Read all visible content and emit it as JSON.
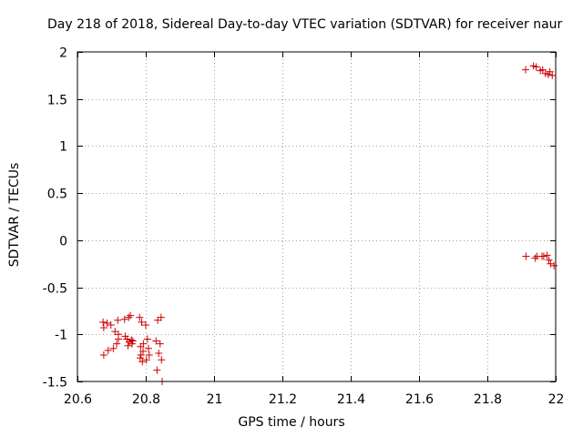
{
  "chart_data": {
    "type": "scatter",
    "title": "Day 218 of 2018, Sidereal Day-to-day VTEC variation (SDTVAR) for receiver naur",
    "xlabel": "GPS time / hours",
    "ylabel": "SDTVAR / TECUs",
    "xlim": [
      20.6,
      22
    ],
    "ylim": [
      -1.5,
      2
    ],
    "xticks": [
      20.6,
      20.8,
      21,
      21.2,
      21.4,
      21.6,
      21.8,
      22
    ],
    "xtick_labels": [
      "20.6",
      "20.8",
      "21",
      "21.2",
      "21.4",
      "21.6",
      "21.8",
      "22"
    ],
    "yticks": [
      -1.5,
      -1,
      -0.5,
      0,
      0.5,
      1,
      1.5,
      2
    ],
    "ytick_labels": [
      "-1.5",
      "-1",
      "-0.5",
      "0",
      "0.5",
      "1",
      "1.5",
      "2"
    ],
    "grid": true,
    "marker": "+",
    "color": "#cc0000",
    "series": [
      {
        "name": "SDTVAR",
        "x": [
          20.675,
          20.677,
          20.677,
          20.687,
          20.69,
          20.698,
          20.705,
          20.71,
          20.715,
          20.718,
          20.72,
          20.72,
          20.738,
          20.74,
          20.745,
          20.748,
          20.75,
          20.752,
          20.755,
          20.758,
          20.76,
          20.762,
          20.782,
          20.784,
          20.785,
          20.786,
          20.788,
          20.79,
          20.792,
          20.793,
          20.8,
          20.802,
          20.805,
          20.808,
          20.81,
          20.83,
          20.833,
          20.835,
          20.838,
          20.842,
          20.845,
          20.846,
          20.848,
          21.912,
          21.913,
          21.935,
          21.94,
          21.943,
          21.945,
          21.955,
          21.96,
          21.962,
          21.965,
          21.97,
          21.975,
          21.978,
          21.98,
          21.983,
          21.985,
          21.99,
          21.995
        ],
        "y": [
          -0.87,
          -1.22,
          -0.93,
          -0.88,
          -1.17,
          -0.9,
          -1.15,
          -0.97,
          -1.1,
          -0.85,
          -1.05,
          -1.0,
          -0.84,
          -1.02,
          -1.05,
          -1.12,
          -0.82,
          -1.08,
          -0.8,
          -1.06,
          -1.1,
          -1.07,
          -0.82,
          -1.25,
          -1.13,
          -1.22,
          -0.87,
          -1.29,
          -1.18,
          -1.1,
          -0.9,
          -1.27,
          -1.05,
          -1.15,
          -1.22,
          -1.07,
          -1.38,
          -0.85,
          -1.2,
          -1.1,
          -0.82,
          -1.27,
          -1.5,
          1.81,
          -0.17,
          1.85,
          -0.19,
          1.84,
          -0.17,
          1.8,
          -0.17,
          1.81,
          -0.17,
          1.77,
          -0.16,
          1.76,
          -0.21,
          1.79,
          -0.25,
          1.75,
          -0.27
        ]
      }
    ]
  }
}
